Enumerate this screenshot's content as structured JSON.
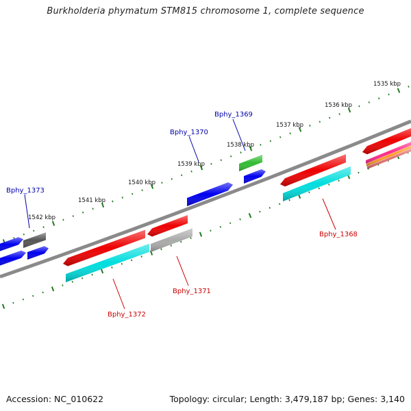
{
  "title": "Burkholderia phymatum STM815 chromosome 1, complete sequence",
  "footer": {
    "accession": "Accession: NC_010622",
    "summary": "Topology: circular; Length: 3,479,187 bp; Genes: 3,140"
  },
  "colors": {
    "backbone": "#8a8a8a",
    "ticks": "#1f7a1f",
    "label_forward_strand": "#0000aa",
    "label_reverse_strand": "#cc0000"
  },
  "kbp_labels": [
    {
      "text": "1535 kbp"
    },
    {
      "text": "1536 kbp"
    },
    {
      "text": "1537 kbp"
    },
    {
      "text": "1538 kbp"
    },
    {
      "text": "1539 kbp"
    },
    {
      "text": "1540 kbp"
    },
    {
      "text": "1541 kbp"
    },
    {
      "text": "1542 kbp"
    }
  ],
  "gene_labels": [
    {
      "text": "Bphy_1369",
      "strand": "forward"
    },
    {
      "text": "Bphy_1370",
      "strand": "forward"
    },
    {
      "text": "Bphy_1373",
      "strand": "forward"
    },
    {
      "text": "Bphy_1368",
      "strand": "reverse"
    },
    {
      "text": "Bphy_1371",
      "strand": "reverse"
    },
    {
      "text": "Bphy_1372",
      "strand": "reverse"
    }
  ],
  "features": [
    {
      "color": "#0000ee"
    },
    {
      "color": "#0000ee"
    },
    {
      "color": "#0000ee"
    },
    {
      "color": "#0000ee"
    },
    {
      "color": "#0000ee"
    },
    {
      "color": "#555555"
    },
    {
      "color": "#33bb33"
    },
    {
      "color": "#ee0000"
    },
    {
      "color": "#ee0000"
    },
    {
      "color": "#ee0000"
    },
    {
      "color": "#ee0000"
    },
    {
      "color": "#00dddd"
    },
    {
      "color": "#00dddd"
    },
    {
      "color": "#aaaaaa"
    },
    {
      "color": "#ff2a8c"
    },
    {
      "color": "#ff9922"
    },
    {
      "color": "#e07070"
    }
  ]
}
